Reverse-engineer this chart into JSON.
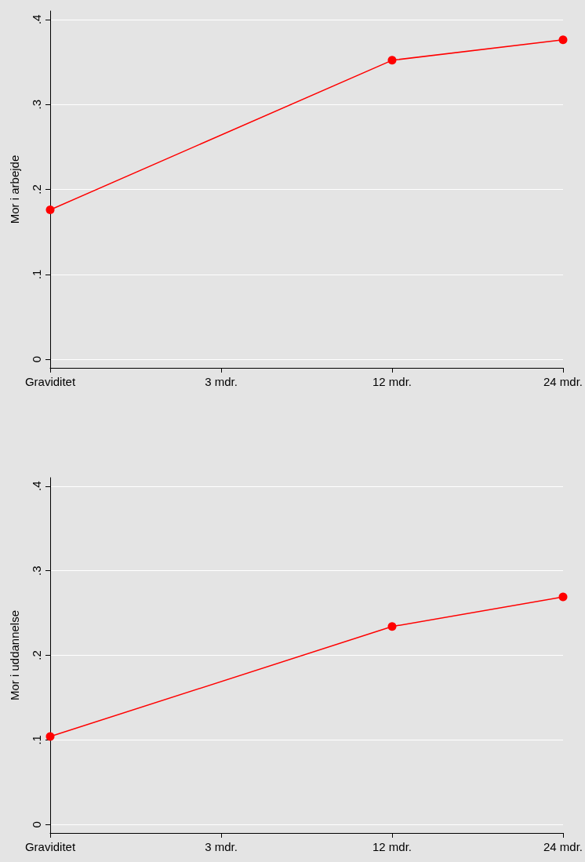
{
  "chart_data": [
    {
      "type": "line",
      "ylabel": "Mor i arbejde",
      "categories": [
        "Graviditet",
        "3 mdr.",
        "12 mdr.",
        "24 mdr."
      ],
      "series": [
        {
          "color": "#ff0000",
          "values": [
            0.176,
            null,
            0.352,
            0.376
          ]
        }
      ],
      "ylim": [
        -0.01,
        0.41
      ],
      "yticks": [
        0,
        {
          "value": 0.1,
          "label": ".1"
        },
        {
          "value": 0.2,
          "label": ".2"
        },
        {
          "value": 0.3,
          "label": ".3"
        },
        {
          "value": 0.4,
          "label": ".4"
        }
      ],
      "grid": "y",
      "marker": "circle",
      "line_style": "solid"
    },
    {
      "type": "line",
      "ylabel": "Mor i uddannelse",
      "categories": [
        "Graviditet",
        "3 mdr.",
        "12 mdr.",
        "24 mdr."
      ],
      "series": [
        {
          "color": "#ff0000",
          "values": [
            0.104,
            null,
            0.234,
            0.269
          ]
        }
      ],
      "ylim": [
        -0.01,
        0.41
      ],
      "yticks": [
        0,
        {
          "value": 0.1,
          "label": ".1"
        },
        {
          "value": 0.2,
          "label": ".2"
        },
        {
          "value": 0.3,
          "label": ".3"
        },
        {
          "value": 0.4,
          "label": ".4"
        }
      ],
      "grid": "y",
      "marker": "circle",
      "line_style": "solid"
    }
  ]
}
